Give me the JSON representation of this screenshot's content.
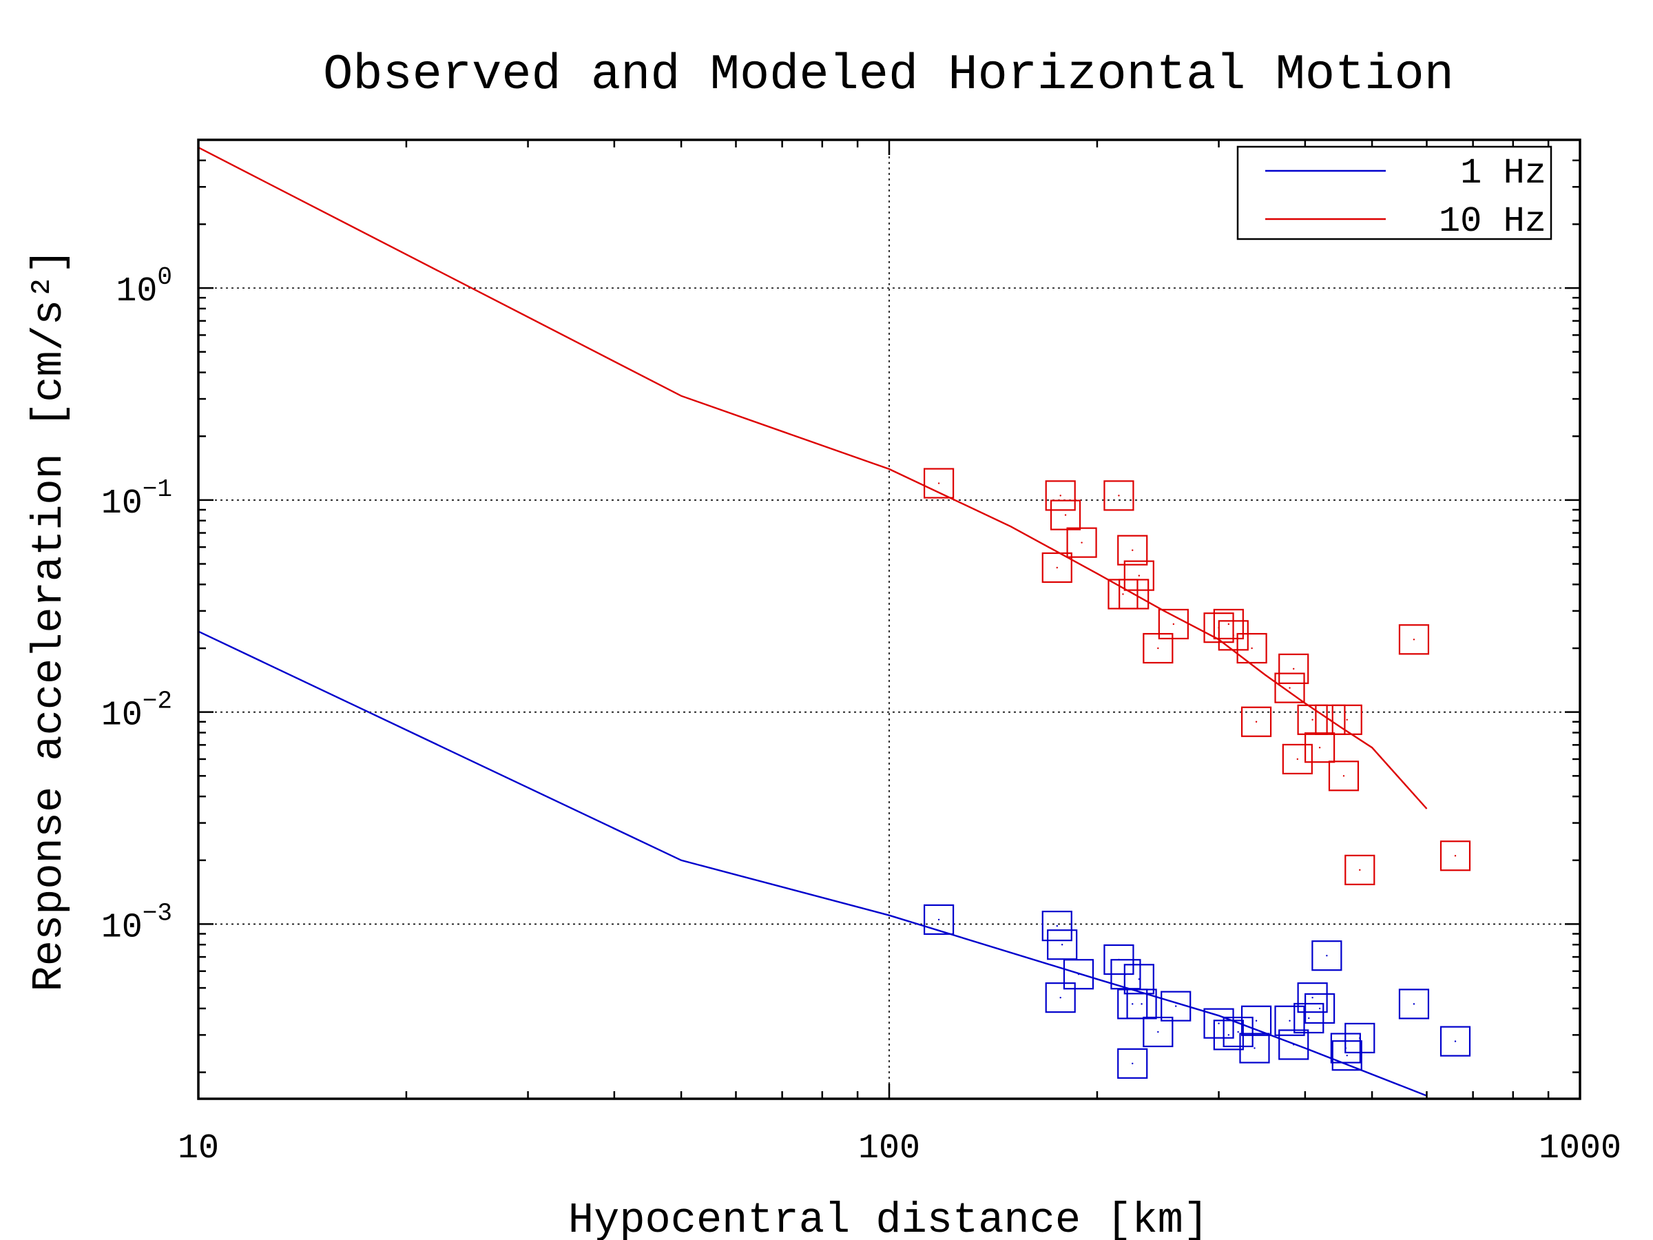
{
  "chart_data": {
    "type": "scatter",
    "title": "Observed and Modeled Horizontal Motion",
    "xlabel": "Hypocentral distance [km]",
    "ylabel": "Response acceleration [cm/s²]",
    "x_scale": "log",
    "y_scale": "log",
    "xlim": [
      10,
      1000
    ],
    "ylim": [
      0.00015,
      5
    ],
    "x_ticks": [
      10,
      100,
      1000
    ],
    "x_tick_labels": [
      "10",
      "100",
      "1000"
    ],
    "y_ticks": [
      0.001,
      0.01,
      0.1,
      1
    ],
    "y_tick_labels": [
      {
        "base": "10",
        "exp": "−3"
      },
      {
        "base": "10",
        "exp": "−2"
      },
      {
        "base": "10",
        "exp": "−1"
      },
      {
        "base": "10",
        "exp": "0"
      }
    ],
    "grid": true,
    "legend_position": "top-right",
    "legend": [
      {
        "label": "1 Hz",
        "color": "#0000cc"
      },
      {
        "label": "10 Hz",
        "color": "#dd0000"
      }
    ],
    "series": [
      {
        "name": "1 Hz",
        "kind": "line",
        "color": "#0000cc",
        "x": [
          10,
          50,
          100,
          200,
          300,
          400,
          600
        ],
        "y": [
          0.024,
          0.002,
          0.0011,
          0.00055,
          0.00037,
          0.00026,
          0.000155
        ]
      },
      {
        "name": "10 Hz",
        "kind": "line",
        "color": "#dd0000",
        "x": [
          10,
          50,
          100,
          150,
          200,
          250,
          300,
          350,
          400,
          450,
          500,
          600
        ],
        "y": [
          4.6,
          0.31,
          0.14,
          0.075,
          0.045,
          0.03,
          0.022,
          0.015,
          0.011,
          0.0085,
          0.0068,
          0.0035
        ]
      },
      {
        "name": "1 Hz",
        "kind": "markers",
        "marker": "open-square",
        "color": "#0000cc",
        "x": [
          118,
          175,
          178,
          177,
          188,
          215,
          220,
          225,
          230,
          232,
          225,
          245,
          260,
          300,
          310,
          320,
          340,
          338,
          380,
          385,
          410,
          420,
          405,
          430,
          460,
          480,
          575,
          660,
          458
        ],
        "y": [
          0.00105,
          0.00098,
          0.0008,
          0.00045,
          0.00058,
          0.00068,
          0.00058,
          0.00042,
          0.00055,
          0.00042,
          0.00022,
          0.00031,
          0.00041,
          0.00034,
          0.0003,
          0.00031,
          0.00035,
          0.00026,
          0.00035,
          0.00027,
          0.00045,
          0.0004,
          0.00036,
          0.00071,
          0.00024,
          0.00029,
          0.00042,
          0.00028,
          0.00026
        ]
      },
      {
        "name": "10 Hz",
        "kind": "markers",
        "marker": "open-square",
        "color": "#dd0000",
        "x": [
          118,
          177,
          180,
          190,
          175,
          215,
          225,
          218,
          230,
          226,
          245,
          258,
          300,
          310,
          315,
          335,
          340,
          385,
          380,
          390,
          410,
          420,
          435,
          460,
          455,
          575,
          480,
          660
        ],
        "y": [
          0.12,
          0.105,
          0.085,
          0.063,
          0.048,
          0.105,
          0.058,
          0.036,
          0.044,
          0.036,
          0.02,
          0.026,
          0.025,
          0.026,
          0.023,
          0.02,
          0.009,
          0.016,
          0.013,
          0.006,
          0.0092,
          0.0068,
          0.0092,
          0.0092,
          0.005,
          0.022,
          0.0018,
          0.0021
        ]
      }
    ]
  }
}
